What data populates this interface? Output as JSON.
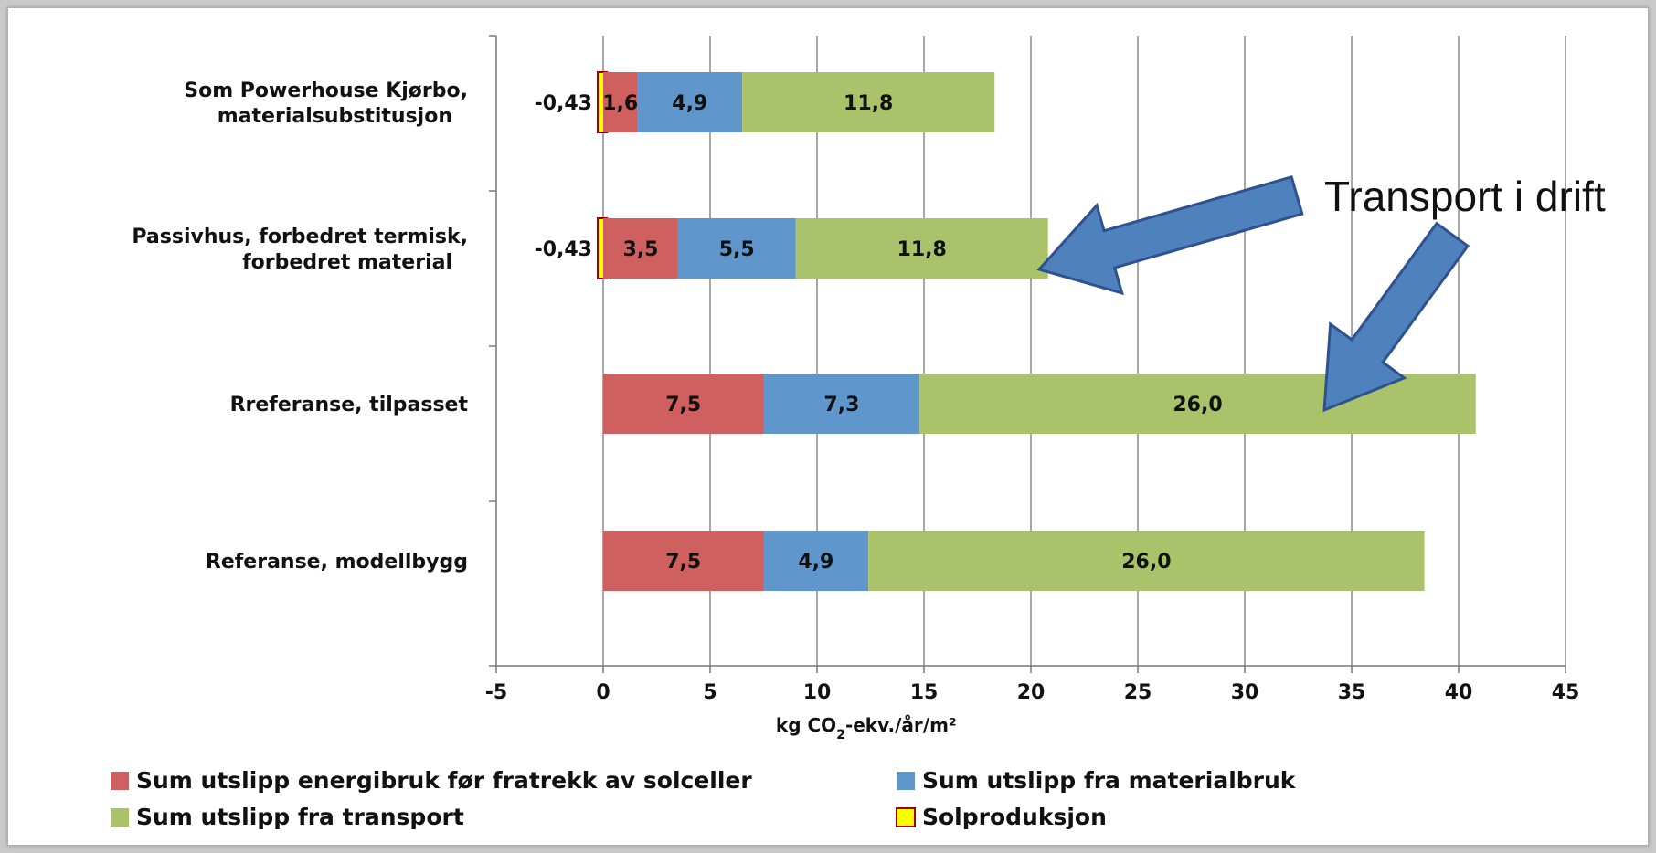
{
  "chart_data": {
    "type": "bar",
    "orientation": "horizontal",
    "stacked": true,
    "categories": [
      [
        "Som Powerhouse Kjørbo,",
        "materialsubstitusjon"
      ],
      [
        "Passivhus, forbedret termisk,",
        "forbedret material"
      ],
      [
        "Rreferanse, tilpasset"
      ],
      [
        "Referanse, modellbygg"
      ]
    ],
    "series": [
      {
        "name": "Solproduksjon",
        "color": "#ffff00",
        "values": [
          -0.43,
          -0.43,
          0,
          0
        ],
        "labels": [
          "-0,43",
          "-0,43",
          "",
          ""
        ]
      },
      {
        "name": "Sum utslipp energibruk før fratrekk av solceller",
        "color": "#d0605f",
        "values": [
          1.6,
          3.5,
          7.5,
          7.5
        ],
        "labels": [
          "1,6",
          "3,5",
          "7,5",
          "7,5"
        ]
      },
      {
        "name": "Sum utslipp fra materialbruk",
        "color": "#5f96cb",
        "values": [
          4.9,
          5.5,
          7.3,
          4.9
        ],
        "labels": [
          "4,9",
          "5,5",
          "7,3",
          "4,9"
        ]
      },
      {
        "name": "Sum utslipp fra transport",
        "color": "#aac36b",
        "values": [
          11.8,
          11.8,
          26.0,
          26.0
        ],
        "labels": [
          "11,8",
          "11,8",
          "26,0",
          "26,0"
        ]
      }
    ],
    "xlim": [
      -5,
      45
    ],
    "xticks": [
      -5,
      0,
      5,
      10,
      15,
      20,
      25,
      30,
      35,
      40,
      45
    ],
    "xlabel": "kg CO₂-ekv./år/m²",
    "grid": "vertical",
    "legend": {
      "placement": "bottom",
      "items": [
        {
          "label": "Sum utslipp energibruk før fratrekk av solceller",
          "color": "#d0605f"
        },
        {
          "label": "Sum utslipp fra materialbruk",
          "color": "#5f96cb"
        },
        {
          "label": "Sum utslipp fra transport",
          "color": "#aac36b"
        },
        {
          "label": "Solproduksjon",
          "color": "#ffff00",
          "border": "#a00000"
        }
      ]
    },
    "annotation": {
      "text": "Transport i drift",
      "arrow_color": "#4f81bd",
      "arrow_border": "#2f528f",
      "points_to": [
        "Passivhus, forbedret termisk, forbedret material: Sum utslipp fra transport",
        "Rreferanse, tilpasset: Sum utslipp fra transport"
      ]
    }
  }
}
